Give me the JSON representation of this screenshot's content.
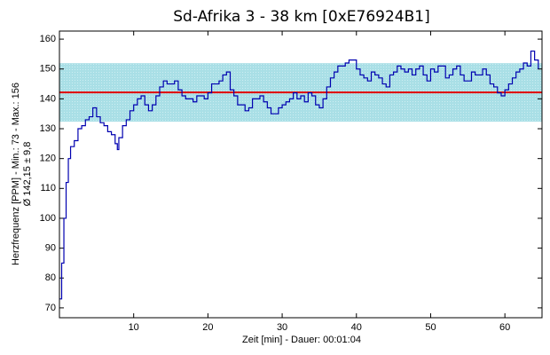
{
  "chart_data": {
    "type": "line",
    "title": "Sd-Afrika 3 - 38 km [0xE76924B1]",
    "x_label": "Zeit [min] - Dauer: 00:01:04",
    "y_label": [
      "Herzfrequenz [PPM] - Min.: 73 - Max.: 156",
      "Ø 142,15 ± 9,8"
    ],
    "xlim": [
      0,
      65
    ],
    "ylim": [
      66.7,
      162.7
    ],
    "xticks": [
      10,
      20,
      30,
      40,
      50,
      60
    ],
    "yticks": [
      70,
      80,
      90,
      100,
      110,
      120,
      130,
      140,
      150,
      160
    ],
    "band": [
      132.35,
      151.95
    ],
    "band_color": "#a9dfe6",
    "mean": 142.15,
    "mean_color": "#e00000",
    "series": [
      {
        "color": "#0000b0",
        "x": [
          0,
          0.3,
          0.6,
          0.9,
          1.2,
          1.5,
          2,
          2.5,
          3,
          3.5,
          4,
          4.5,
          5,
          5.5,
          6,
          6.5,
          7,
          7.5,
          7.8,
          8,
          8.5,
          9,
          9.5,
          10,
          10.5,
          11,
          11.5,
          12,
          12.5,
          13,
          13.5,
          14,
          14.5,
          15,
          15.5,
          16,
          16.5,
          17,
          17.5,
          18,
          18.5,
          19,
          19.5,
          20,
          20.5,
          21,
          21.5,
          22,
          22.5,
          23,
          23.5,
          24,
          24.5,
          25,
          25.5,
          26,
          26.5,
          27,
          27.5,
          28,
          28.5,
          29,
          29.5,
          30,
          30.5,
          31,
          31.5,
          32,
          32.5,
          33,
          33.5,
          34,
          34.5,
          35,
          35.5,
          36,
          36.5,
          37,
          37.5,
          38,
          38.5,
          39,
          39.5,
          40,
          40.5,
          41,
          41.5,
          42,
          42.5,
          43,
          43.5,
          44,
          44.5,
          45,
          45.5,
          46,
          46.5,
          47,
          47.5,
          48,
          48.5,
          49,
          49.5,
          50,
          50.5,
          51,
          51.5,
          52,
          52.5,
          53,
          53.5,
          54,
          54.5,
          55,
          55.5,
          56,
          56.5,
          57,
          57.5,
          58,
          58.5,
          59,
          59.5,
          60,
          60.5,
          61,
          61.5,
          62,
          62.5,
          63,
          63.5,
          64,
          64.5
        ],
        "values": [
          73,
          85,
          100,
          112,
          120,
          124,
          126,
          130,
          131,
          133,
          134,
          137,
          134,
          132,
          131,
          129,
          128,
          125,
          123,
          127,
          131,
          133,
          136,
          138,
          140,
          141,
          138,
          136,
          138,
          141,
          144,
          146,
          145,
          145,
          146,
          143,
          141,
          140,
          140,
          139,
          141,
          141,
          140,
          142,
          145,
          145,
          146,
          148,
          149,
          143,
          141,
          138,
          138,
          136,
          137,
          140,
          140,
          141,
          139,
          137,
          135,
          135,
          137,
          138,
          139,
          140,
          142,
          140,
          141,
          139,
          142,
          141,
          138,
          137,
          140,
          144,
          147,
          149,
          151,
          151,
          152,
          153,
          153,
          150,
          148,
          147,
          146,
          149,
          148,
          147,
          145,
          144,
          148,
          149,
          151,
          150,
          149,
          150,
          148,
          150,
          151,
          148,
          146,
          150,
          149,
          151,
          151,
          147,
          148,
          150,
          151,
          148,
          146,
          146,
          149,
          148,
          148,
          150,
          148,
          145,
          144,
          142,
          141,
          143,
          145,
          147,
          149,
          150,
          152,
          151,
          156,
          153,
          150
        ]
      }
    ]
  }
}
